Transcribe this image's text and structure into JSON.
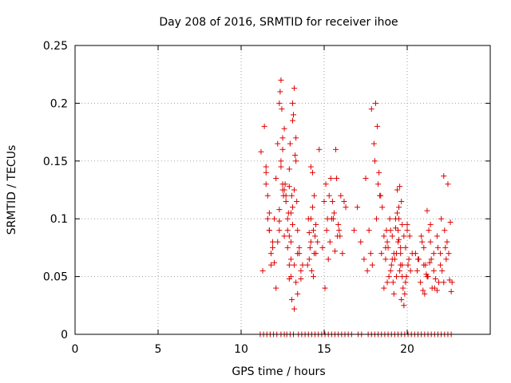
{
  "chart_data": {
    "type": "scatter",
    "title": "Day 208 of 2016, SRMTID for receiver ihoe",
    "xlabel": "GPS time / hours",
    "ylabel": "SRMTID / TECUs",
    "xlim": [
      0,
      25
    ],
    "ylim": [
      0,
      0.25
    ],
    "grid": true,
    "x_ticks": [
      0,
      5,
      10,
      15,
      20
    ],
    "x_tick_labels": [
      "0",
      "5",
      "10",
      "15",
      "20"
    ],
    "y_ticks": [
      0,
      0.05,
      0.1,
      0.15,
      0.2,
      0.25
    ],
    "y_tick_labels": [
      "0",
      "0.05",
      "0.1",
      "0.15",
      "0.2",
      "0.25"
    ],
    "marker": "+",
    "series": [
      {
        "name": "SRMTID",
        "color": "#dd0000",
        "x": [
          11.2,
          11.4,
          11.5,
          11.6,
          11.7,
          11.8,
          11.9,
          12.0,
          12.1,
          12.2,
          12.3,
          12.4,
          12.5,
          12.6,
          12.7,
          12.8,
          12.9,
          13.0,
          13.1,
          13.2,
          13.3,
          13.4,
          13.5,
          13.6,
          13.7,
          11.3,
          11.5,
          11.7,
          11.9,
          12.1,
          12.3,
          12.5,
          12.7,
          12.9,
          13.1,
          13.3,
          13.5,
          12.35,
          12.45,
          12.55,
          12.65,
          12.85,
          12.95,
          13.05,
          13.15,
          13.25,
          13.35,
          11.6,
          11.8,
          12.0,
          12.2,
          12.4,
          12.6,
          12.8,
          13.0,
          13.2,
          13.4,
          12.4,
          12.5,
          12.5,
          12.9,
          13.0,
          13.1,
          13.1,
          13.2,
          12.3,
          12.6,
          12.8,
          13.0,
          13.2,
          13.3,
          12.9,
          13.05,
          11.5,
          11.7,
          12.3,
          12.9,
          13.4,
          13.6,
          14.0,
          14.1,
          14.2,
          14.3,
          14.4,
          14.5,
          14.6,
          14.15,
          14.25,
          14.35,
          14.45,
          14.05,
          14.2,
          14.4,
          14.3,
          14.1,
          14.5,
          14.2,
          14.35,
          14.7,
          14.9,
          15.0,
          15.1,
          15.2,
          15.3,
          15.4,
          15.5,
          15.6,
          15.7,
          15.8,
          15.9,
          16.0,
          16.1,
          16.2,
          16.3,
          15.05,
          15.25,
          15.45,
          15.65,
          15.85,
          15.35,
          15.55,
          15.75,
          15.95,
          15.15,
          16.8,
          17.0,
          17.2,
          17.4,
          17.5,
          17.6,
          17.8,
          17.9,
          18.0,
          18.1,
          18.2,
          18.3,
          18.4,
          18.5,
          18.6,
          18.7,
          17.7,
          17.85,
          18.05,
          18.15,
          18.25,
          18.35,
          18.45,
          18.6,
          18.7,
          18.8,
          18.9,
          19.0,
          19.1,
          19.2,
          19.3,
          19.4,
          19.5,
          19.6,
          19.7,
          19.8,
          19.9,
          20.0,
          20.1,
          20.2,
          20.3,
          18.75,
          18.85,
          18.95,
          19.05,
          19.15,
          19.25,
          19.35,
          19.45,
          19.55,
          19.65,
          19.75,
          19.85,
          19.95,
          20.05,
          20.15,
          18.8,
          19.0,
          19.2,
          19.4,
          19.6,
          19.8,
          20.0,
          19.1,
          19.3,
          19.5,
          19.7,
          19.9,
          19.35,
          19.55,
          19.45,
          19.6,
          19.5,
          19.65,
          19.7,
          20.5,
          20.6,
          20.7,
          20.8,
          20.9,
          21.0,
          21.1,
          21.2,
          21.3,
          21.4,
          21.5,
          21.6,
          21.7,
          21.8,
          21.9,
          22.0,
          22.1,
          22.2,
          22.3,
          22.4,
          22.5,
          22.6,
          22.7,
          20.65,
          20.85,
          21.05,
          21.25,
          21.45,
          21.65,
          21.85,
          22.05,
          22.25,
          22.45,
          22.65,
          21.0,
          21.2,
          21.4,
          21.6,
          21.8,
          22.0,
          22.2,
          22.35,
          22.55,
          20.95,
          21.15,
          21.35,
          11.15,
          11.35,
          11.55,
          11.75,
          11.95,
          12.15,
          12.4,
          12.6,
          12.75,
          12.95,
          13.15,
          13.45,
          13.65,
          13.85,
          14.05,
          14.25,
          14.45,
          14.65,
          14.85,
          15.05,
          15.25,
          15.45,
          15.65,
          15.85,
          16.05,
          16.25,
          16.45,
          16.65,
          17.05,
          17.25,
          17.65,
          17.85,
          18.05,
          18.25,
          18.45,
          18.65,
          18.85,
          19.05,
          19.25,
          19.45,
          19.65,
          19.85,
          20.05,
          20.25,
          20.45,
          20.65,
          20.85,
          21.05,
          21.25,
          21.45,
          21.65,
          21.85,
          22.05,
          22.25,
          22.45,
          22.65
        ],
        "y": [
          0.158,
          0.18,
          0.14,
          0.12,
          0.09,
          0.06,
          0.08,
          0.1,
          0.135,
          0.165,
          0.2,
          0.22,
          0.17,
          0.125,
          0.115,
          0.1,
          0.06,
          0.08,
          0.2,
          0.213,
          0.15,
          0.09,
          0.075,
          0.055,
          0.06,
          0.055,
          0.145,
          0.105,
          0.075,
          0.04,
          0.098,
          0.125,
          0.12,
          0.085,
          0.185,
          0.17,
          0.07,
          0.21,
          0.195,
          0.12,
          0.13,
          0.105,
          0.165,
          0.12,
          0.19,
          0.155,
          0.115,
          0.1,
          0.07,
          0.062,
          0.08,
          0.15,
          0.178,
          0.09,
          0.05,
          0.022,
          0.035,
          0.145,
          0.16,
          0.13,
          0.128,
          0.105,
          0.095,
          0.11,
          0.125,
          0.09,
          0.085,
          0.075,
          0.065,
          0.06,
          0.045,
          0.048,
          0.03,
          0.13,
          0.09,
          0.108,
          0.143,
          0.07,
          0.048,
          0.06,
          0.088,
          0.1,
          0.14,
          0.12,
          0.095,
          0.08,
          0.075,
          0.055,
          0.05,
          0.085,
          0.1,
          0.145,
          0.07,
          0.11,
          0.065,
          0.07,
          0.08,
          0.09,
          0.16,
          0.075,
          0.115,
          0.13,
          0.1,
          0.12,
          0.135,
          0.115,
          0.105,
          0.16,
          0.085,
          0.09,
          0.12,
          0.07,
          0.115,
          0.11,
          0.04,
          0.065,
          0.1,
          0.072,
          0.095,
          0.08,
          0.1,
          0.135,
          0.085,
          0.09,
          0.09,
          0.11,
          0.08,
          0.065,
          0.135,
          0.055,
          0.07,
          0.06,
          0.165,
          0.2,
          0.18,
          0.14,
          0.12,
          0.11,
          0.085,
          0.075,
          0.09,
          0.195,
          0.15,
          0.1,
          0.13,
          0.12,
          0.07,
          0.04,
          0.065,
          0.08,
          0.05,
          0.09,
          0.085,
          0.07,
          0.1,
          0.125,
          0.11,
          0.06,
          0.095,
          0.085,
          0.075,
          0.09,
          0.065,
          0.055,
          0.07,
          0.09,
          0.075,
          0.1,
          0.06,
          0.045,
          0.065,
          0.05,
          0.08,
          0.128,
          0.115,
          0.04,
          0.035,
          0.05,
          0.06,
          0.085,
          0.045,
          0.055,
          0.035,
          0.105,
          0.075,
          0.025,
          0.095,
          0.065,
          0.092,
          0.082,
          0.06,
          0.045,
          0.07,
          0.055,
          0.09,
          0.07,
          0.1,
          0.03,
          0.05,
          0.07,
          0.055,
          0.065,
          0.045,
          0.08,
          0.075,
          0.06,
          0.05,
          0.09,
          0.095,
          0.04,
          0.07,
          0.048,
          0.085,
          0.045,
          0.06,
          0.055,
          0.137,
          0.075,
          0.08,
          0.07,
          0.097,
          0.045,
          0.065,
          0.085,
          0.035,
          0.05,
          0.065,
          0.04,
          0.075,
          0.1,
          0.09,
          0.13,
          0.037,
          0.06,
          0.107,
          0.08,
          0.055,
          0.038,
          0.07,
          0.045,
          0.065,
          0.047,
          0.038,
          0.052,
          0.062,
          0,
          0,
          0,
          0,
          0,
          0,
          0,
          0,
          0,
          0,
          0,
          0,
          0,
          0,
          0,
          0,
          0,
          0,
          0,
          0,
          0,
          0,
          0,
          0,
          0,
          0,
          0,
          0,
          0,
          0,
          0,
          0,
          0,
          0,
          0,
          0,
          0,
          0,
          0,
          0,
          0,
          0,
          0,
          0,
          0,
          0,
          0,
          0,
          0,
          0,
          0,
          0,
          0,
          0,
          0,
          0
        ]
      }
    ]
  }
}
